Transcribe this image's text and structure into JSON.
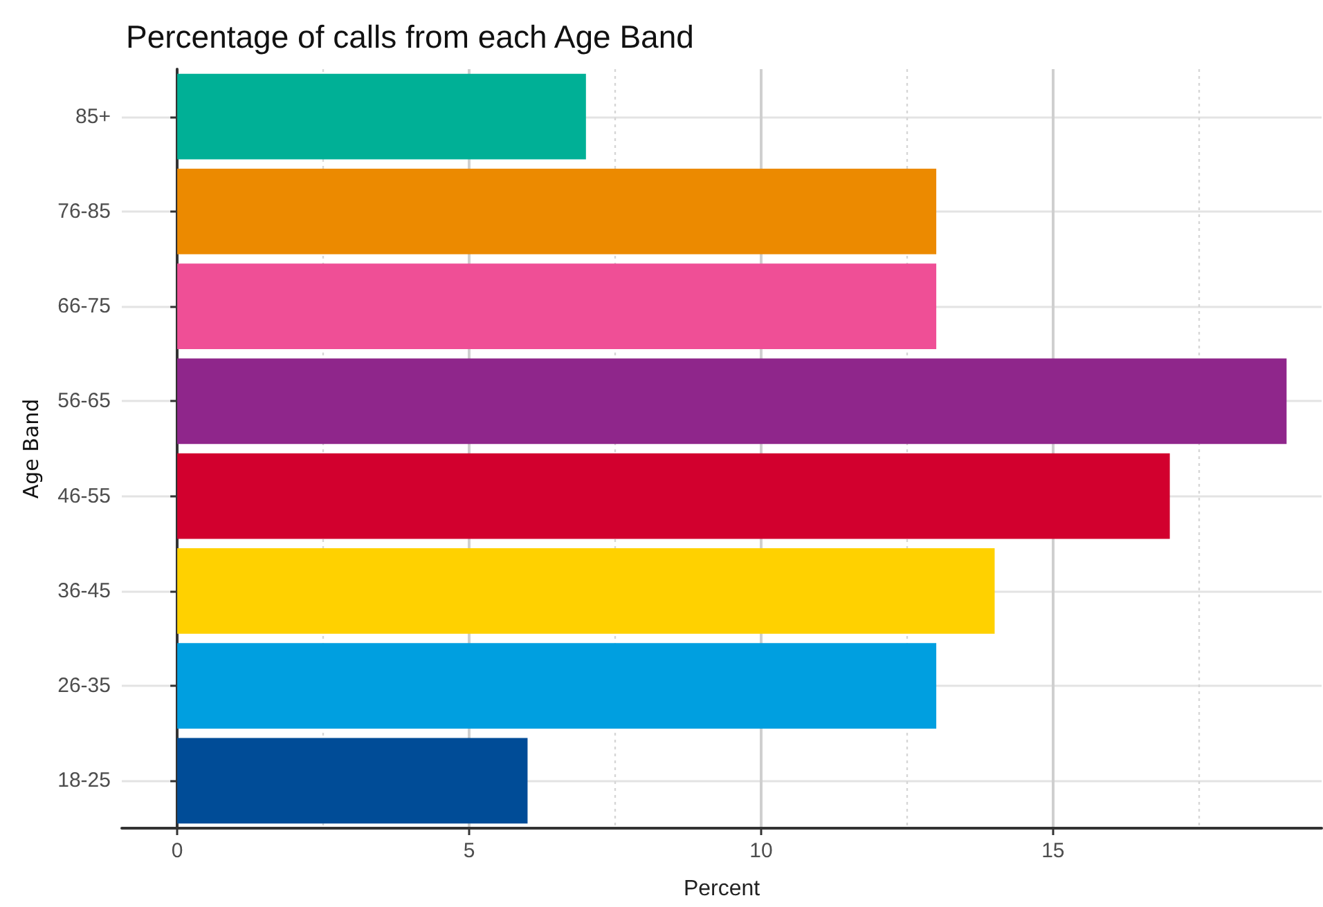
{
  "chart_data": {
    "type": "bar",
    "orientation": "horizontal",
    "title": "Percentage of calls from each Age Band",
    "xlabel": "Percent",
    "ylabel": "Age Band",
    "categories": [
      "85+",
      "76-85",
      "66-75",
      "56-65",
      "46-55",
      "36-45",
      "26-35",
      "18-25"
    ],
    "values": [
      7,
      13,
      13,
      19,
      17,
      14,
      13,
      6
    ],
    "colors": [
      "#00b096",
      "#ec8a00",
      "#ef4f96",
      "#8f268b",
      "#d2002e",
      "#ffd100",
      "#009fe0",
      "#004c97"
    ],
    "xlim": [
      -0.95,
      19.6
    ],
    "xticks": [
      0,
      {
        "value": 2.5,
        "label": null
      },
      5,
      {
        "value": 7.5,
        "label": null
      },
      10,
      {
        "value": 12.5,
        "label": null
      },
      15,
      {
        "value": 17.5,
        "label": null
      }
    ],
    "grid": true
  }
}
